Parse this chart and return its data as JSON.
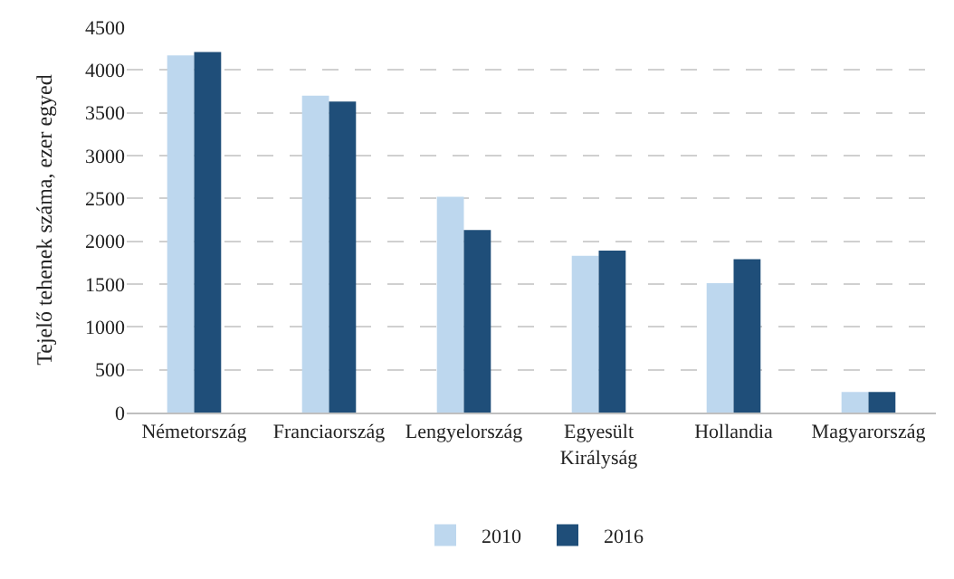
{
  "chart_data": {
    "type": "bar",
    "ylabel": "Tejelő tehenek száma, ezer egyed",
    "categories": [
      "Németország",
      "Franciaország",
      "Lengyelország",
      "Egyesült\nKirályság",
      "Hollandia",
      "Magyarország"
    ],
    "series": [
      {
        "name": "2010",
        "color": "#bdd7ee",
        "values": [
          4170,
          3700,
          2520,
          1830,
          1510,
          240
        ]
      },
      {
        "name": "2016",
        "color": "#1f4e79",
        "values": [
          4210,
          3630,
          2130,
          1890,
          1790,
          240
        ]
      }
    ],
    "ylim": [
      0,
      4500
    ],
    "yticks": [
      0,
      500,
      1000,
      1500,
      2000,
      2500,
      3000,
      3500,
      4000,
      4500
    ],
    "grid": "y",
    "legend": "bottom"
  }
}
